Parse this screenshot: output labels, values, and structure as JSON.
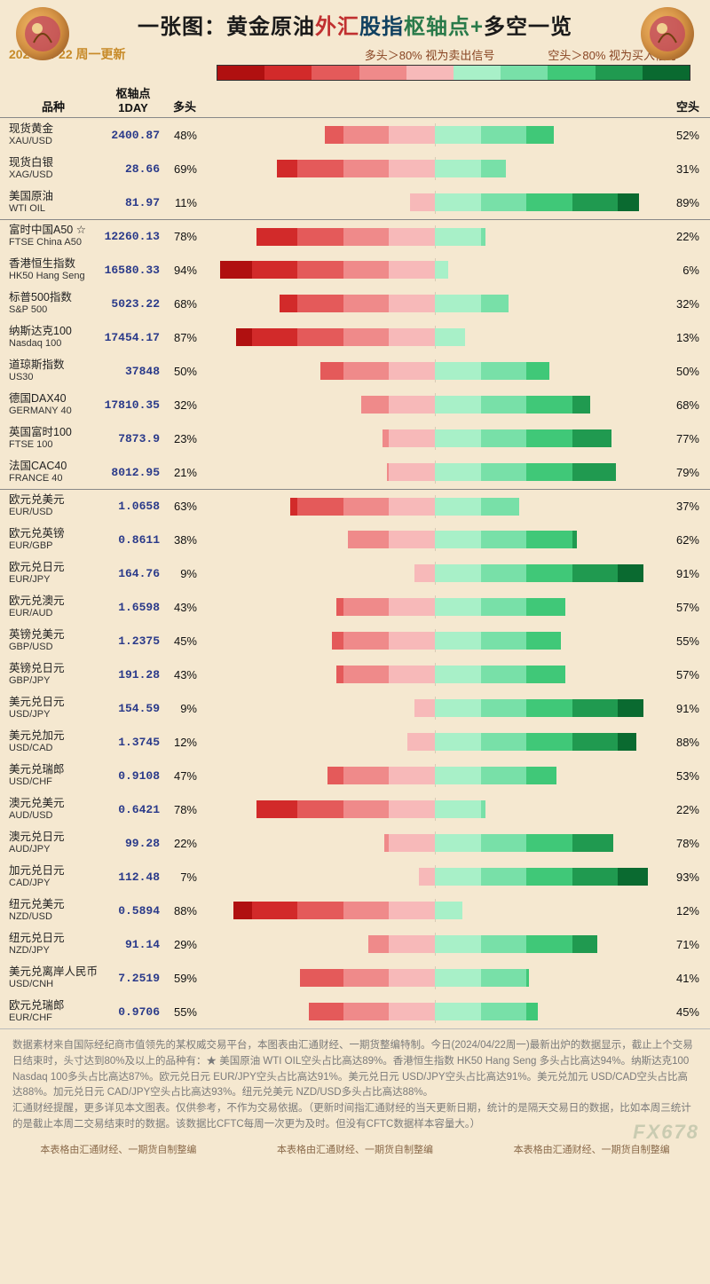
{
  "title_segments": [
    {
      "text": "一张图：黄金原油",
      "cls": "seg0"
    },
    {
      "text": "外汇",
      "cls": "seg1"
    },
    {
      "text": "股指",
      "cls": "seg2"
    },
    {
      "text": "枢轴点+",
      "cls": "seg3"
    },
    {
      "text": "多空一览",
      "cls": "seg4"
    }
  ],
  "date_text": "2024-04-22  周一更新",
  "signal_sell": "多头＞80%  视为卖出信号",
  "signal_buy": "空头＞80%  视为买入信号",
  "header": {
    "name_col": "品种",
    "pivot_col": "枢轴点\n1DAY",
    "long_col": "多头",
    "short_col": "空头"
  },
  "bar": {
    "half_width_pct": 100,
    "long_colors": [
      "#f7b9b9",
      "#ef8a8a",
      "#e45a5a",
      "#d22a2a",
      "#b01010"
    ],
    "short_colors": [
      "#a8f0c8",
      "#78e0a8",
      "#40c878",
      "#209a50",
      "#0a6a30"
    ],
    "legend_colors": [
      "#b01010",
      "#d22a2a",
      "#e45a5a",
      "#ef8a8a",
      "#f7b9b9",
      "#a8f0c8",
      "#78e0a8",
      "#40c878",
      "#209a50",
      "#0a6a30"
    ]
  },
  "groups": [
    {
      "rows": [
        {
          "cn": "现货黄金",
          "en": "XAU/USD",
          "pivot": "2400.87",
          "long": 48,
          "short": 52
        },
        {
          "cn": "现货白银",
          "en": "XAG/USD",
          "pivot": "28.66",
          "long": 69,
          "short": 31
        },
        {
          "cn": "美国原油",
          "en": "WTI OIL",
          "pivot": "81.97",
          "long": 11,
          "short": 89
        }
      ]
    },
    {
      "rows": [
        {
          "cn": "富时中国A50 ☆",
          "en": "FTSE China A50",
          "pivot": "12260.13",
          "long": 78,
          "short": 22
        },
        {
          "cn": "香港恒生指数",
          "en": "HK50 Hang Seng",
          "pivot": "16580.33",
          "long": 94,
          "short": 6
        },
        {
          "cn": "标普500指数",
          "en": "S&P 500",
          "pivot": "5023.22",
          "long": 68,
          "short": 32
        },
        {
          "cn": "纳斯达克100",
          "en": "Nasdaq 100",
          "pivot": "17454.17",
          "long": 87,
          "short": 13
        },
        {
          "cn": "道琼斯指数",
          "en": "US30",
          "pivot": "37848",
          "long": 50,
          "short": 50
        },
        {
          "cn": "德国DAX40",
          "en": "GERMANY 40",
          "pivot": "17810.35",
          "long": 32,
          "short": 68
        },
        {
          "cn": "英国富时100",
          "en": "FTSE 100",
          "pivot": "7873.9",
          "long": 23,
          "short": 77
        },
        {
          "cn": "法国CAC40",
          "en": "FRANCE 40",
          "pivot": "8012.95",
          "long": 21,
          "short": 79
        }
      ]
    },
    {
      "rows": [
        {
          "cn": "欧元兑美元",
          "en": "EUR/USD",
          "pivot": "1.0658",
          "long": 63,
          "short": 37
        },
        {
          "cn": "欧元兑英镑",
          "en": "EUR/GBP",
          "pivot": "0.8611",
          "long": 38,
          "short": 62
        },
        {
          "cn": "欧元兑日元",
          "en": "EUR/JPY",
          "pivot": "164.76",
          "long": 9,
          "short": 91
        },
        {
          "cn": "欧元兑澳元",
          "en": "EUR/AUD",
          "pivot": "1.6598",
          "long": 43,
          "short": 57
        },
        {
          "cn": "英镑兑美元",
          "en": "GBP/USD",
          "pivot": "1.2375",
          "long": 45,
          "short": 55
        },
        {
          "cn": "英镑兑日元",
          "en": "GBP/JPY",
          "pivot": "191.28",
          "long": 43,
          "short": 57
        },
        {
          "cn": "美元兑日元",
          "en": "USD/JPY",
          "pivot": "154.59",
          "long": 9,
          "short": 91
        },
        {
          "cn": "美元兑加元",
          "en": "USD/CAD",
          "pivot": "1.3745",
          "long": 12,
          "short": 88
        },
        {
          "cn": "美元兑瑞郎",
          "en": "USD/CHF",
          "pivot": "0.9108",
          "long": 47,
          "short": 53
        },
        {
          "cn": "澳元兑美元",
          "en": "AUD/USD",
          "pivot": "0.6421",
          "long": 78,
          "short": 22
        },
        {
          "cn": "澳元兑日元",
          "en": "AUD/JPY",
          "pivot": "99.28",
          "long": 22,
          "short": 78
        },
        {
          "cn": "加元兑日元",
          "en": "CAD/JPY",
          "pivot": "112.48",
          "long": 7,
          "short": 93
        },
        {
          "cn": "纽元兑美元",
          "en": "NZD/USD",
          "pivot": "0.5894",
          "long": 88,
          "short": 12
        },
        {
          "cn": "纽元兑日元",
          "en": "NZD/JPY",
          "pivot": "91.14",
          "long": 29,
          "short": 71
        },
        {
          "cn": "美元兑离岸人民币",
          "en": "USD/CNH",
          "pivot": "7.2519",
          "long": 59,
          "short": 41
        },
        {
          "cn": "欧元兑瑞郎",
          "en": "EUR/CHF",
          "pivot": "0.9706",
          "long": 55,
          "short": 45
        }
      ]
    }
  ],
  "footer_text": "数据素材来自国际经纪商市值领先的某权威交易平台，本图表由汇通财经、一期货整编特制。今日(2024/04/22周一)最新出炉的数据显示，截止上个交易日结束时，头寸达到80%及以上的品种有：★ 美国原油 WTI OIL空头占比高达89%。香港恒生指数 HK50 Hang Seng 多头占比高达94%。纳斯达克100 Nasdaq 100多头占比高达87%。欧元兑日元 EUR/JPY空头占比高达91%。美元兑日元 USD/JPY空头占比高达91%。美元兑加元 USD/CAD空头占比高达88%。加元兑日元 CAD/JPY空头占比高达93%。纽元兑美元 NZD/USD多头占比高达88%。\n汇通财经提醒，更多详见本文图表。仅供参考，不作为交易依据。（更新时间指汇通财经的当天更新日期，统计的是隔天交易日的数据，比如本周三统计的是截止本周二交易结束时的数据。该数据比CFTC每周一次更为及时。但没有CFTC数据样本容量大。）",
  "watermark": "FX678",
  "credit_text": "本表格由汇通财经、一期货自制整编"
}
